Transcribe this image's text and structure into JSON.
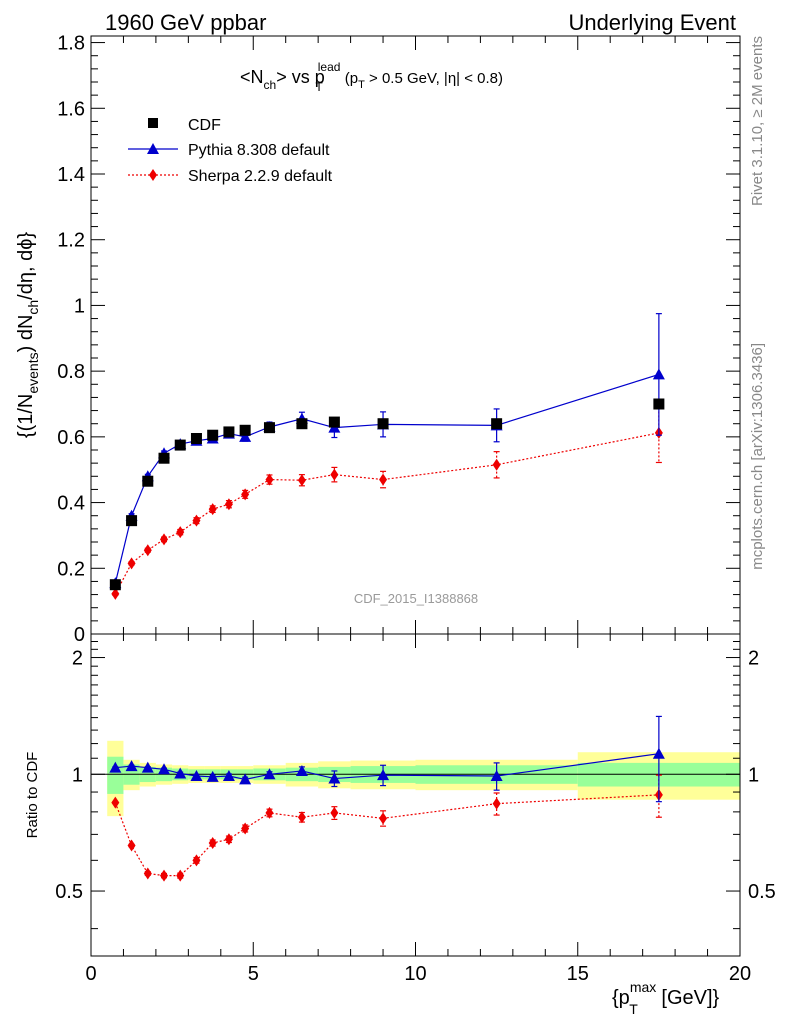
{
  "header": {
    "left": "1960 GeV ppbar",
    "right": "Underlying Event"
  },
  "side_labels": {
    "rivet": "Rivet 3.1.10, ≥ 2M events",
    "mcplots": "mcplots.cern.ch [arXiv:1306.3436]"
  },
  "colors": {
    "cdf": "#000000",
    "pythia": "#0000cc",
    "sherpa": "#ee0000",
    "band_outer": "#ffff99",
    "band_inner": "#99ff99"
  },
  "chart_data": [
    {
      "type": "scatter",
      "panel": "main",
      "title": "<N_ch> vs p_T^lead (p_T > 0.5 GeV, |η| < 0.8)",
      "ylabel": "{(1/N_events) dN_ch/dη, dϕ}",
      "watermark": "CDF_2015_I1388868",
      "xlim": [
        0,
        20
      ],
      "ylim": [
        0,
        1.82
      ],
      "yticks": [
        0,
        0.2,
        0.4,
        0.6,
        0.8,
        1,
        1.2,
        1.4,
        1.6,
        1.8
      ],
      "ytick_labels": [
        "0",
        "0.2",
        "0.4",
        "0.6",
        "0.8",
        "1",
        "1.2",
        "1.4",
        "1.6",
        "1.8"
      ],
      "legend_position": "top-left",
      "series": [
        {
          "name": "CDF",
          "marker": "square",
          "x": [
            0.75,
            1.25,
            1.75,
            2.25,
            2.75,
            3.25,
            3.75,
            4.25,
            4.75,
            5.5,
            6.5,
            7.5,
            9.0,
            12.5,
            17.5
          ],
          "y": [
            0.15,
            0.345,
            0.465,
            0.535,
            0.575,
            0.595,
            0.605,
            0.615,
            0.62,
            0.628,
            0.64,
            0.645,
            0.64,
            0.64,
            0.7
          ],
          "yerr": [
            0.01,
            0.01,
            0.01,
            0.01,
            0.01,
            0.01,
            0.01,
            0.01,
            0.01,
            0.01,
            0.01,
            0.01,
            0.01,
            0.01,
            0.01
          ]
        },
        {
          "name": "Pythia 8.308 default",
          "marker": "triangle",
          "x": [
            0.75,
            1.25,
            1.75,
            2.25,
            2.75,
            3.25,
            3.75,
            4.25,
            4.75,
            5.5,
            6.5,
            7.5,
            9.0,
            12.5,
            17.5
          ],
          "y": [
            0.155,
            0.36,
            0.48,
            0.55,
            0.578,
            0.588,
            0.595,
            0.61,
            0.6,
            0.63,
            0.655,
            0.628,
            0.638,
            0.635,
            0.79
          ],
          "yerr": [
            0.005,
            0.006,
            0.006,
            0.007,
            0.008,
            0.009,
            0.01,
            0.012,
            0.013,
            0.015,
            0.02,
            0.03,
            0.038,
            0.05,
            0.185
          ]
        },
        {
          "name": "Sherpa 2.2.9 default",
          "marker": "diamond",
          "line": "dotted",
          "x": [
            0.75,
            1.25,
            1.75,
            2.25,
            2.75,
            3.25,
            3.75,
            4.25,
            4.75,
            5.5,
            6.5,
            7.5,
            9.0,
            12.5,
            17.5
          ],
          "y": [
            0.122,
            0.215,
            0.255,
            0.288,
            0.31,
            0.345,
            0.38,
            0.395,
            0.425,
            0.47,
            0.468,
            0.485,
            0.47,
            0.515,
            0.612
          ],
          "yerr": [
            0.004,
            0.005,
            0.006,
            0.007,
            0.008,
            0.009,
            0.01,
            0.011,
            0.012,
            0.014,
            0.017,
            0.022,
            0.025,
            0.04,
            0.09
          ]
        }
      ]
    },
    {
      "type": "scatter",
      "panel": "ratio",
      "ylabel": "Ratio to CDF",
      "xlabel": "{p_T^max [GeV]}",
      "xlim": [
        0,
        20
      ],
      "ylim": [
        0.34,
        2.3
      ],
      "xticks": [
        0,
        5,
        10,
        15,
        20
      ],
      "xtick_labels": [
        "0",
        "5",
        "10",
        "15",
        "20"
      ],
      "yticks": [
        0.5,
        1,
        2
      ],
      "ytick_labels": [
        "0.5",
        "1",
        "2"
      ],
      "reference_bands": {
        "x_edges": [
          0.5,
          1.0,
          1.5,
          2.0,
          2.5,
          3.0,
          3.5,
          4.0,
          4.5,
          5.0,
          6.0,
          7.0,
          8.0,
          10.0,
          15.0,
          20.0
        ],
        "inner": [
          0.11,
          0.06,
          0.045,
          0.04,
          0.035,
          0.03,
          0.03,
          0.03,
          0.03,
          0.035,
          0.04,
          0.045,
          0.05,
          0.055,
          0.07
        ],
        "outer": [
          0.22,
          0.09,
          0.07,
          0.06,
          0.055,
          0.05,
          0.05,
          0.05,
          0.05,
          0.055,
          0.07,
          0.08,
          0.085,
          0.09,
          0.14
        ]
      },
      "series": [
        {
          "name": "Pythia 8.308 default",
          "x": [
            0.75,
            1.25,
            1.75,
            2.25,
            2.75,
            3.25,
            3.75,
            4.25,
            4.75,
            5.5,
            6.5,
            7.5,
            9.0,
            12.5,
            17.5
          ],
          "y": [
            1.04,
            1.05,
            1.04,
            1.03,
            1.005,
            0.99,
            0.985,
            0.99,
            0.97,
            1.0,
            1.02,
            0.975,
            0.995,
            0.99,
            1.13
          ],
          "yerr": [
            0.005,
            0.005,
            0.006,
            0.007,
            0.008,
            0.009,
            0.01,
            0.012,
            0.013,
            0.015,
            0.025,
            0.045,
            0.06,
            0.08,
            0.28
          ]
        },
        {
          "name": "Sherpa 2.2.9 default",
          "x": [
            0.75,
            1.25,
            1.75,
            2.25,
            2.75,
            3.25,
            3.75,
            4.25,
            4.75,
            5.5,
            6.5,
            7.5,
            9.0,
            12.5,
            17.5
          ],
          "y": [
            0.845,
            0.655,
            0.555,
            0.548,
            0.548,
            0.6,
            0.665,
            0.68,
            0.725,
            0.795,
            0.775,
            0.795,
            0.77,
            0.84,
            0.885
          ],
          "yerr": [
            0.004,
            0.005,
            0.006,
            0.007,
            0.008,
            0.01,
            0.012,
            0.013,
            0.015,
            0.018,
            0.022,
            0.03,
            0.035,
            0.055,
            0.11
          ]
        }
      ]
    }
  ]
}
